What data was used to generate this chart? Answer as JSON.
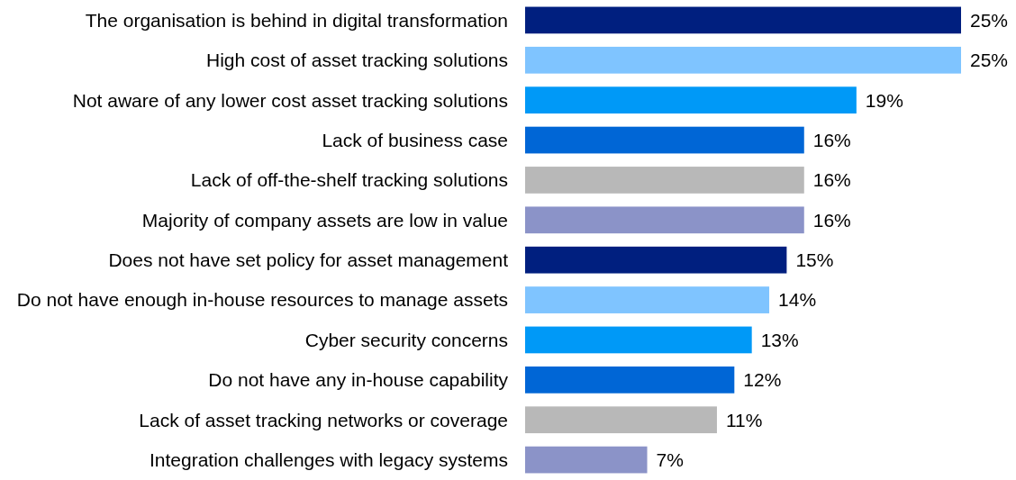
{
  "chart_data": {
    "type": "bar",
    "orientation": "horizontal",
    "categories": [
      "The organisation is behind in digital transformation",
      "High cost of asset tracking solutions",
      "Not aware of any lower cost asset tracking solutions",
      "Lack of business case",
      "Lack of off-the-shelf tracking solutions",
      "Majority of company assets are low in value",
      "Does not have set policy for asset management",
      "Do not have enough in-house resources to manage assets",
      "Cyber security concerns",
      "Do not have any in-house capability",
      "Lack of asset tracking networks or coverage",
      "Integration challenges with legacy systems"
    ],
    "values": [
      25,
      25,
      19,
      16,
      16,
      16,
      15,
      14,
      13,
      12,
      11,
      7
    ],
    "value_labels": [
      "25%",
      "25%",
      "19%",
      "16%",
      "16%",
      "16%",
      "15%",
      "14%",
      "13%",
      "12%",
      "11%",
      "7%"
    ],
    "colors": [
      "#001f7f",
      "#7fc4ff",
      "#0099f7",
      "#0066d6",
      "#b8b8b8",
      "#8b93c8",
      "#001f7f",
      "#7fc4ff",
      "#0099f7",
      "#0066d6",
      "#b8b8b8",
      "#8b93c8"
    ],
    "data_labels": false
  }
}
